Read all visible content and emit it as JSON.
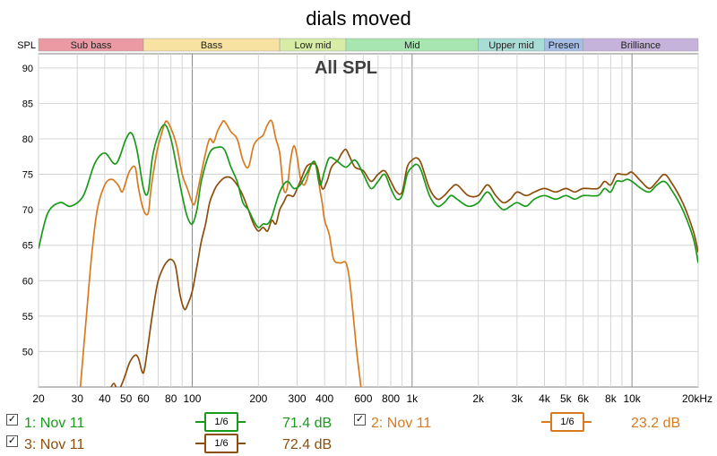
{
  "title": "dials moved",
  "chart_data": {
    "type": "line",
    "title": "All SPL",
    "ylabel": "SPL",
    "x_scale": "log",
    "xlim": [
      20,
      20000
    ],
    "ylim": [
      45,
      92
    ],
    "x_ticks": [
      {
        "v": 20,
        "label": "20"
      },
      {
        "v": 30,
        "label": "30"
      },
      {
        "v": 40,
        "label": "40"
      },
      {
        "v": 50,
        "label": "50"
      },
      {
        "v": 60,
        "label": "60"
      },
      {
        "v": 80,
        "label": "80"
      },
      {
        "v": 100,
        "label": "100"
      },
      {
        "v": 200,
        "label": "200"
      },
      {
        "v": 300,
        "label": "300"
      },
      {
        "v": 400,
        "label": "400"
      },
      {
        "v": 600,
        "label": "600"
      },
      {
        "v": 800,
        "label": "800"
      },
      {
        "v": 1000,
        "label": "1k"
      },
      {
        "v": 2000,
        "label": "2k"
      },
      {
        "v": 3000,
        "label": "3k"
      },
      {
        "v": 4000,
        "label": "4k"
      },
      {
        "v": 5000,
        "label": "5k"
      },
      {
        "v": 6000,
        "label": "6k"
      },
      {
        "v": 8000,
        "label": "8k"
      },
      {
        "v": 10000,
        "label": "10k"
      },
      {
        "v": 20000,
        "label": "20kHz"
      }
    ],
    "y_ticks": [
      50,
      55,
      60,
      65,
      70,
      75,
      80,
      85,
      90
    ],
    "bands": [
      {
        "label": "Sub bass",
        "from": 20,
        "to": 60,
        "color": "#eb9aa4"
      },
      {
        "label": "Bass",
        "from": 60,
        "to": 250,
        "color": "#f7e2a2"
      },
      {
        "label": "Low mid",
        "from": 250,
        "to": 500,
        "color": "#d7eda6"
      },
      {
        "label": "Mid",
        "from": 500,
        "to": 2000,
        "color": "#a7e6b0"
      },
      {
        "label": "Upper mid",
        "from": 2000,
        "to": 4000,
        "color": "#a8ddd6"
      },
      {
        "label": "Presen",
        "from": 4000,
        "to": 6000,
        "color": "#a6bee5"
      },
      {
        "label": "Brilliance",
        "from": 6000,
        "to": 20000,
        "color": "#c6b3dc"
      }
    ],
    "series": [
      {
        "name": "1: Nov 11",
        "color": "#1a9a1a",
        "smoothing": "1/6",
        "value": "71.4 dB",
        "points": [
          [
            20,
            64.5
          ],
          [
            22,
            69.5
          ],
          [
            25,
            71
          ],
          [
            28,
            70.5
          ],
          [
            32,
            72
          ],
          [
            36,
            76.5
          ],
          [
            40,
            78
          ],
          [
            45,
            76.5
          ],
          [
            50,
            80
          ],
          [
            53,
            80.8
          ],
          [
            56,
            78.5
          ],
          [
            60,
            73
          ],
          [
            63,
            72.5
          ],
          [
            66,
            77.5
          ],
          [
            70,
            80.5
          ],
          [
            75,
            82
          ],
          [
            80,
            80
          ],
          [
            85,
            76
          ],
          [
            90,
            72
          ],
          [
            95,
            69
          ],
          [
            100,
            68
          ],
          [
            105,
            70
          ],
          [
            110,
            74
          ],
          [
            120,
            78
          ],
          [
            130,
            78.8
          ],
          [
            140,
            78.5
          ],
          [
            150,
            76
          ],
          [
            160,
            74
          ],
          [
            170,
            71
          ],
          [
            180,
            70
          ],
          [
            190,
            68.5
          ],
          [
            200,
            67.5
          ],
          [
            210,
            68
          ],
          [
            220,
            68
          ],
          [
            230,
            69
          ],
          [
            250,
            72.5
          ],
          [
            270,
            74
          ],
          [
            290,
            73
          ],
          [
            310,
            73.5
          ],
          [
            330,
            75
          ],
          [
            360,
            76.8
          ],
          [
            380,
            73.5
          ],
          [
            400,
            75.5
          ],
          [
            420,
            77.3
          ],
          [
            450,
            77
          ],
          [
            500,
            76
          ],
          [
            550,
            77
          ],
          [
            600,
            75
          ],
          [
            650,
            73
          ],
          [
            700,
            74
          ],
          [
            750,
            75
          ],
          [
            800,
            73
          ],
          [
            850,
            71.5
          ],
          [
            900,
            72
          ],
          [
            950,
            75
          ],
          [
            1000,
            76
          ],
          [
            1050,
            76.4
          ],
          [
            1100,
            75.5
          ],
          [
            1200,
            72
          ],
          [
            1300,
            70.5
          ],
          [
            1400,
            71
          ],
          [
            1500,
            72
          ],
          [
            1600,
            71.5
          ],
          [
            1800,
            70.5
          ],
          [
            2000,
            71
          ],
          [
            2200,
            72.5
          ],
          [
            2400,
            71
          ],
          [
            2600,
            70
          ],
          [
            2800,
            70.5
          ],
          [
            3000,
            71
          ],
          [
            3300,
            70.5
          ],
          [
            3600,
            71.5
          ],
          [
            4000,
            72
          ],
          [
            4500,
            71.5
          ],
          [
            5000,
            72
          ],
          [
            5500,
            71.5
          ],
          [
            6000,
            72
          ],
          [
            7000,
            72
          ],
          [
            7500,
            73
          ],
          [
            8000,
            72.5
          ],
          [
            8500,
            74
          ],
          [
            9000,
            74
          ],
          [
            9500,
            74.3
          ],
          [
            10000,
            74
          ],
          [
            11000,
            73
          ],
          [
            12000,
            72.5
          ],
          [
            13000,
            73.5
          ],
          [
            14000,
            74
          ],
          [
            15000,
            73
          ],
          [
            17000,
            70
          ],
          [
            19000,
            66
          ],
          [
            20000,
            62.5
          ]
        ]
      },
      {
        "name": "2: Nov 11",
        "color": "#d87b1e",
        "smoothing": "1/6",
        "value": "23.2 dB",
        "points": [
          [
            31,
            45
          ],
          [
            33,
            55
          ],
          [
            35,
            64
          ],
          [
            37,
            70
          ],
          [
            40,
            73.5
          ],
          [
            43,
            74.3
          ],
          [
            46,
            73.5
          ],
          [
            48,
            72.5
          ],
          [
            50,
            74
          ],
          [
            52,
            75.5
          ],
          [
            55,
            76
          ],
          [
            57,
            73
          ],
          [
            60,
            70
          ],
          [
            63,
            69.5
          ],
          [
            65,
            73
          ],
          [
            68,
            77
          ],
          [
            70,
            79
          ],
          [
            73,
            81
          ],
          [
            76,
            82.5
          ],
          [
            80,
            81.5
          ],
          [
            85,
            79
          ],
          [
            90,
            75
          ],
          [
            95,
            73
          ],
          [
            100,
            71
          ],
          [
            103,
            71
          ],
          [
            108,
            74
          ],
          [
            115,
            78
          ],
          [
            120,
            80
          ],
          [
            125,
            79.5
          ],
          [
            130,
            81
          ],
          [
            135,
            82
          ],
          [
            140,
            82.5
          ],
          [
            150,
            81
          ],
          [
            160,
            80
          ],
          [
            170,
            77
          ],
          [
            180,
            76
          ],
          [
            190,
            79
          ],
          [
            200,
            80
          ],
          [
            210,
            80.5
          ],
          [
            220,
            82
          ],
          [
            230,
            82.5
          ],
          [
            240,
            80
          ],
          [
            250,
            78
          ],
          [
            260,
            73
          ],
          [
            270,
            73
          ],
          [
            280,
            77
          ],
          [
            290,
            79
          ],
          [
            300,
            77.5
          ],
          [
            310,
            74.5
          ],
          [
            320,
            73.5
          ],
          [
            330,
            74
          ],
          [
            350,
            76.5
          ],
          [
            370,
            76
          ],
          [
            380,
            73
          ],
          [
            390,
            71
          ],
          [
            400,
            68.5
          ],
          [
            420,
            66.5
          ],
          [
            440,
            63
          ],
          [
            470,
            62.5
          ],
          [
            500,
            62.5
          ],
          [
            520,
            60
          ],
          [
            540,
            55
          ],
          [
            560,
            50
          ],
          [
            580,
            46
          ],
          [
            590,
            44
          ]
        ]
      },
      {
        "name": "3: Nov 11",
        "color": "#8c4e0c",
        "smoothing": "1/6",
        "value": "72.4 dB",
        "points": [
          [
            42,
            44.5
          ],
          [
            44,
            45.5
          ],
          [
            46,
            44.5
          ],
          [
            48,
            45.5
          ],
          [
            50,
            47
          ],
          [
            52,
            48.5
          ],
          [
            55,
            49.5
          ],
          [
            57,
            49
          ],
          [
            60,
            47
          ],
          [
            63,
            51
          ],
          [
            65,
            54
          ],
          [
            68,
            58
          ],
          [
            70,
            60
          ],
          [
            73,
            61.5
          ],
          [
            76,
            62.5
          ],
          [
            80,
            63
          ],
          [
            84,
            62
          ],
          [
            88,
            58
          ],
          [
            92,
            56
          ],
          [
            95,
            56.5
          ],
          [
            100,
            58.5
          ],
          [
            105,
            62
          ],
          [
            110,
            65.5
          ],
          [
            115,
            68
          ],
          [
            120,
            71
          ],
          [
            125,
            72.5
          ],
          [
            130,
            73.5
          ],
          [
            140,
            74.5
          ],
          [
            150,
            74.5
          ],
          [
            160,
            73.5
          ],
          [
            170,
            72
          ],
          [
            180,
            70
          ],
          [
            190,
            68
          ],
          [
            200,
            67
          ],
          [
            210,
            67.5
          ],
          [
            220,
            67
          ],
          [
            230,
            68.5
          ],
          [
            240,
            68
          ],
          [
            250,
            70
          ],
          [
            260,
            71
          ],
          [
            270,
            72
          ],
          [
            280,
            72
          ],
          [
            290,
            72
          ],
          [
            310,
            74
          ],
          [
            330,
            76
          ],
          [
            350,
            76.5
          ],
          [
            370,
            76
          ],
          [
            390,
            73
          ],
          [
            410,
            74
          ],
          [
            430,
            76
          ],
          [
            460,
            77
          ],
          [
            480,
            78
          ],
          [
            500,
            78.5
          ],
          [
            520,
            77.5
          ],
          [
            550,
            76
          ],
          [
            600,
            75.5
          ],
          [
            650,
            74
          ],
          [
            700,
            75
          ],
          [
            750,
            75.5
          ],
          [
            800,
            74
          ],
          [
            850,
            72.5
          ],
          [
            900,
            72.5
          ],
          [
            950,
            76
          ],
          [
            1000,
            77
          ],
          [
            1050,
            77.3
          ],
          [
            1100,
            76.5
          ],
          [
            1200,
            73
          ],
          [
            1300,
            71.5
          ],
          [
            1400,
            72
          ],
          [
            1500,
            73
          ],
          [
            1600,
            73.5
          ],
          [
            1800,
            72
          ],
          [
            2000,
            72
          ],
          [
            2200,
            73.5
          ],
          [
            2400,
            72
          ],
          [
            2600,
            71
          ],
          [
            2800,
            71.5
          ],
          [
            3000,
            72.5
          ],
          [
            3300,
            72
          ],
          [
            3600,
            72.5
          ],
          [
            4000,
            73
          ],
          [
            4500,
            72.5
          ],
          [
            5000,
            73
          ],
          [
            5500,
            72.5
          ],
          [
            6000,
            73
          ],
          [
            7000,
            73
          ],
          [
            7500,
            74
          ],
          [
            8000,
            73.5
          ],
          [
            8500,
            75
          ],
          [
            9000,
            75
          ],
          [
            9500,
            75
          ],
          [
            10000,
            75.3
          ],
          [
            11000,
            74
          ],
          [
            12000,
            73
          ],
          [
            13000,
            74
          ],
          [
            14000,
            75
          ],
          [
            15000,
            74
          ],
          [
            17000,
            71
          ],
          [
            19000,
            67
          ],
          [
            20000,
            64
          ]
        ]
      }
    ]
  }
}
